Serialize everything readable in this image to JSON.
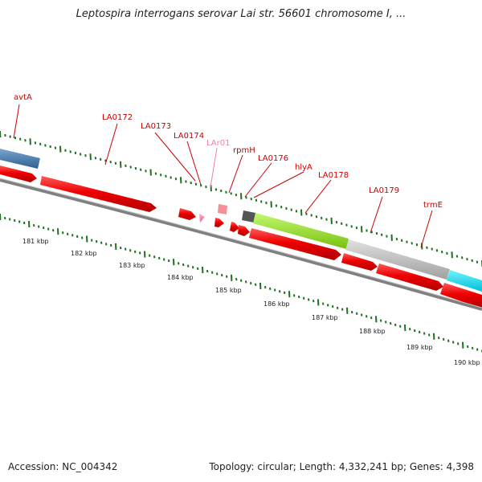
{
  "title": "Leptospira interrogans serovar Lai str. 56601 chromosome I, ...",
  "accession": "Accession: NC_004342",
  "stats": "Topology: circular; Length: 4,332,241 bp; Genes: 4,398",
  "colors": {
    "label": "#cc0000",
    "label_faded": "#f080a8",
    "forward_feature": "#ee0000",
    "tick": "#207020",
    "backbone": "#808080",
    "blue_feature": "#4a7fb0",
    "green_feature": "#99e628",
    "gray_feature": "#bdbdbd",
    "cyan_feature": "#00e0f0"
  },
  "gene_labels": [
    {
      "text": "avtA",
      "faded": false
    },
    {
      "text": "LA0172",
      "faded": false
    },
    {
      "text": "LA0173",
      "faded": false
    },
    {
      "text": "LA0174",
      "faded": false
    },
    {
      "text": "LAr01",
      "faded": true
    },
    {
      "text": "rpmH",
      "faded": false
    },
    {
      "text": "LA0176",
      "faded": false
    },
    {
      "text": "hlyA",
      "faded": false
    },
    {
      "text": "LA0178",
      "faded": false
    },
    {
      "text": "LA0179",
      "faded": false
    },
    {
      "text": "trmE",
      "faded": false
    }
  ],
  "kbp_labels": [
    "181 kbp",
    "182 kbp",
    "183 kbp",
    "184 kbp",
    "185 kbp",
    "186 kbp",
    "187 kbp",
    "188 kbp",
    "189 kbp",
    "190 kbp"
  ]
}
